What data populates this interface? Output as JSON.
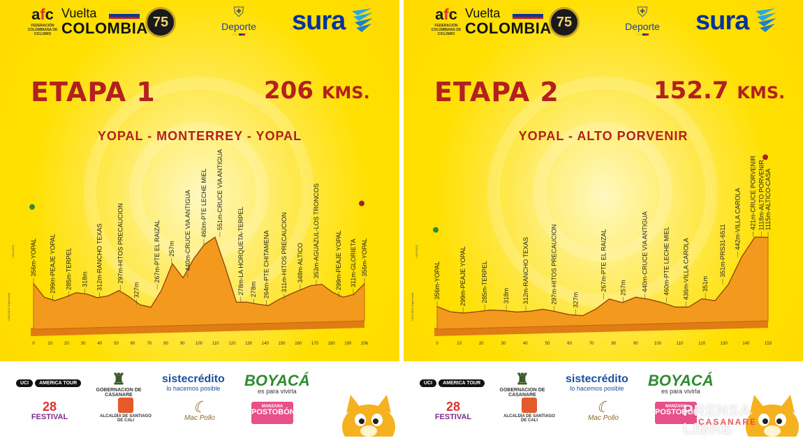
{
  "posters": [
    {
      "etapa": "ETAPA 1",
      "distance_value": "206",
      "distance_unit": "KMS.",
      "route": "YOPAL - MONTERREY - YOPAL",
      "header": {
        "fcc_label": "FEDERACIÓN COLOMBIANA DE CICLISMO",
        "vuelta": "Vuelta",
        "colombia": "COLOMBIA",
        "seal": "75",
        "deporte": "Deporte",
        "sura": "sura"
      },
      "side_text_1": "VIGILADO",
      "side_text_2": "VIGILADO Supersalud",
      "x_ticks": [
        "0",
        "10",
        "20",
        "30",
        "40",
        "50",
        "60",
        "70",
        "80",
        "90",
        "100",
        "110",
        "120",
        "130",
        "140",
        "150",
        "160",
        "170",
        "180",
        "190",
        "206"
      ],
      "labels": [
        {
          "text": "356m-YOPAL",
          "km": 0
        },
        {
          "text": "299m-PEAJE YOPAL",
          "km": 12
        },
        {
          "text": "285m-TERPEL",
          "km": 22
        },
        {
          "text": "318m",
          "km": 32
        },
        {
          "text": "312m-RANCHO TEXAS",
          "km": 41
        },
        {
          "text": "297m-HITOS PRECAUCION",
          "km": 54
        },
        {
          "text": "327m",
          "km": 64
        },
        {
          "text": "267m-PTE EL RAIZAL",
          "km": 77
        },
        {
          "text": "257m",
          "km": 86
        },
        {
          "text": "440m-CRUCE VIA ANTIGUA",
          "km": 96
        },
        {
          "text": "460m-PTE LECHE MIEL",
          "km": 106
        },
        {
          "text": "551m-CRUCE VIA ANTIGUA",
          "km": 116
        },
        {
          "text": "278m-LA HORQUETA-TERPEL",
          "km": 129
        },
        {
          "text": "278m",
          "km": 137
        },
        {
          "text": "264m-PTE CHITAMENA",
          "km": 145
        },
        {
          "text": "311m-HITOS PRECAUCION",
          "km": 156
        },
        {
          "text": "348m-ALTICO",
          "km": 166
        },
        {
          "text": "353m-AGUAZUL-LOS TRONCOS",
          "km": 176
        },
        {
          "text": "299m-PEAJE YOPAL",
          "km": 190
        },
        {
          "text": "311m-GLORIETA",
          "km": 199
        },
        {
          "text": "356m-YOPAL",
          "km": 206
        }
      ],
      "profile": {
        "total_km": 206,
        "elevation_m": [
          356,
          299,
          285,
          300,
          318,
          312,
          297,
          305,
          327,
          300,
          267,
          257,
          330,
          440,
          380,
          460,
          520,
          551,
          420,
          278,
          278,
          270,
          264,
          290,
          311,
          330,
          348,
          353,
          320,
          299,
          311,
          356
        ]
      }
    },
    {
      "etapa": "ETAPA 2",
      "distance_value": "152.7",
      "distance_unit": "KMS.",
      "route": "YOPAL - ALTO PORVENIR",
      "header": {
        "fcc_label": "FEDERACIÓN COLOMBIANA DE CICLISMO",
        "vuelta": "Vuelta",
        "colombia": "COLOMBIA",
        "seal": "75",
        "deporte": "Deporte",
        "sura": "sura"
      },
      "side_text_1": "VIGILADO",
      "side_text_2": "VIGILADO Supersalud",
      "x_ticks": [
        "0",
        "10",
        "20",
        "30",
        "40",
        "50",
        "60",
        "70",
        "80",
        "90",
        "100",
        "110",
        "120",
        "130",
        "140",
        "153"
      ],
      "labels": [
        {
          "text": "356m-YOPAL",
          "km": 0
        },
        {
          "text": "299m-PEAJE YOPAL",
          "km": 12
        },
        {
          "text": "285m-TERPEL",
          "km": 22
        },
        {
          "text": "318m",
          "km": 32
        },
        {
          "text": "312m-RANCHO TEXAS",
          "km": 41
        },
        {
          "text": "297m-HITOS PRECAUCION",
          "km": 54
        },
        {
          "text": "327m",
          "km": 64
        },
        {
          "text": "267m-PTE EL RAIZAL",
          "km": 77
        },
        {
          "text": "257m",
          "km": 86
        },
        {
          "text": "440m-CRUCE VIA ANTIGUA",
          "km": 96
        },
        {
          "text": "460m-PTE LECHE MIEL",
          "km": 106
        },
        {
          "text": "436m-VILLA CAROLA",
          "km": 115
        },
        {
          "text": "351m",
          "km": 124
        },
        {
          "text": "351m-PRS31-6511",
          "km": 132
        },
        {
          "text": "442m-VILLA CAROLA",
          "km": 139
        },
        {
          "text": "421m-CRUCE PORVENIR",
          "km": 146
        },
        {
          "text": "1118m-ALTO PORVENIR",
          "km": 150
        },
        {
          "text": "1115m-ALTICO-CASA",
          "km": 153
        }
      ],
      "profile": {
        "total_km": 153,
        "elevation_m": [
          356,
          299,
          285,
          300,
          318,
          312,
          297,
          305,
          327,
          300,
          267,
          257,
          330,
          440,
          400,
          460,
          436,
          400,
          351,
          351,
          442,
          421,
          600,
          900,
          1118,
          1115
        ]
      }
    }
  ],
  "sponsors": {
    "uci": "UCI",
    "uci_sub": "AMERICA TOUR",
    "casanare": "GOBERNACION DE CASANARE",
    "siste": "sistecrédito",
    "siste_sub": "lo hacemos posible",
    "boyaca": "BOYACÁ",
    "boyaca_sub": "es para vivirla",
    "festival_n": "28",
    "festival": "FESTIVAL",
    "cali": "ALCALDÍA DE SANTIAGO DE CALI",
    "macpollo": "Mac Pollo",
    "postobon_top": "MANZANA",
    "postobon": "POSTOBÓN"
  },
  "watermark": "PRENSA LIBRE",
  "watermark_sub": "CASANARE",
  "colors": {
    "title_red": "#b3201f",
    "profile_orange": "#f39a1e",
    "sura_blue": "#0033a0"
  }
}
